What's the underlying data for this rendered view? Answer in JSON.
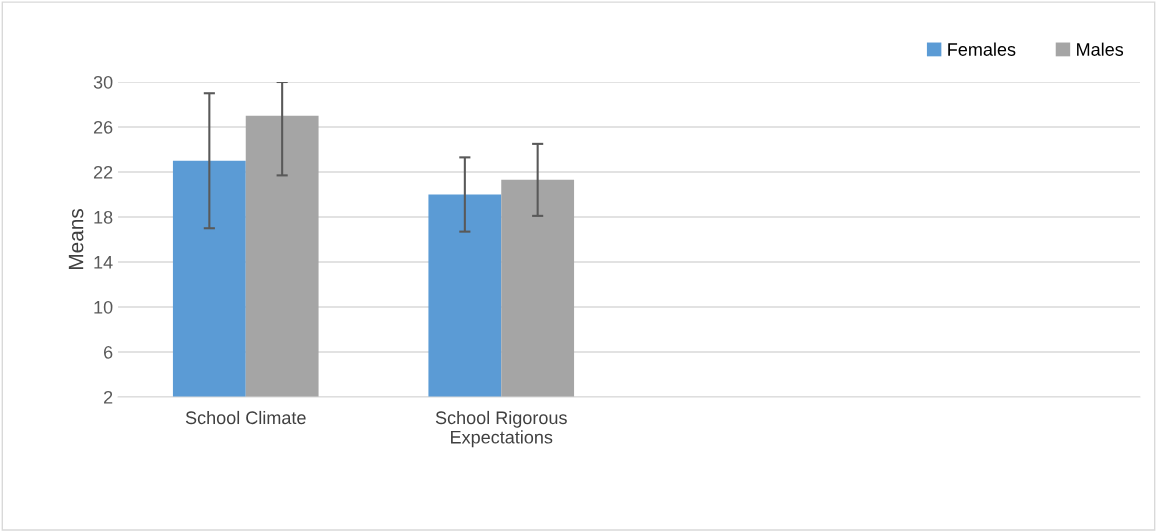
{
  "chart_data": {
    "type": "bar",
    "ylabel": "Means",
    "categories": [
      "School Climate",
      "School Rigorous\nExpectations",
      null,
      null
    ],
    "series": [
      {
        "name": "Females",
        "color": "#5b9bd5",
        "values": [
          23,
          20,
          null,
          null
        ],
        "errors": [
          6,
          3.3,
          null,
          null
        ]
      },
      {
        "name": "Males",
        "color": "#a5a5a5",
        "values": [
          27,
          21.3,
          null,
          null
        ],
        "errors": [
          [
            21.7,
            30
          ],
          3.2,
          null,
          null
        ]
      }
    ],
    "ylim": [
      2,
      30
    ],
    "yticks": [
      2,
      6,
      10,
      14,
      18,
      22,
      26,
      30
    ],
    "grid": "y",
    "legend": "top right"
  }
}
